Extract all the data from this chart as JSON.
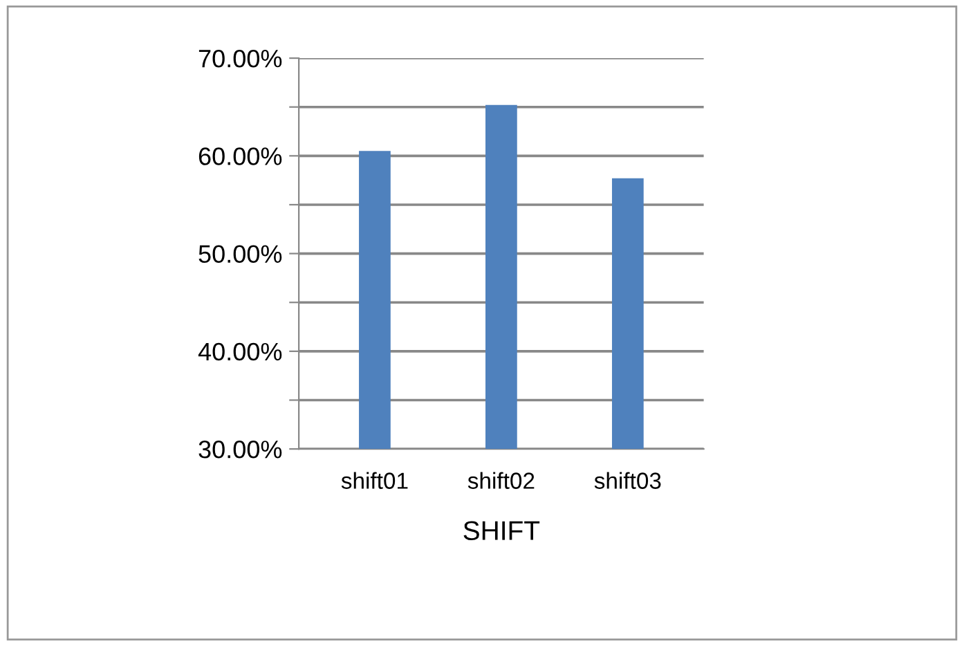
{
  "chart_data": {
    "type": "bar",
    "xlabel": "SHIFT",
    "categories": [
      "shift01",
      "shift02",
      "shift03"
    ],
    "values": [
      60.5,
      65.2,
      57.7
    ],
    "color": "#4f81bd",
    "ylim": [
      30,
      70
    ],
    "yticks": [
      {
        "value": 30,
        "label": "30.00%"
      },
      {
        "value": 35,
        "label": null
      },
      {
        "value": 40,
        "label": "40.00%"
      },
      {
        "value": 45,
        "label": null
      },
      {
        "value": 50,
        "label": "50.00%"
      },
      {
        "value": 55,
        "label": null
      },
      {
        "value": 60,
        "label": "60.00%"
      },
      {
        "value": 65,
        "label": null
      },
      {
        "value": 70,
        "label": "70.00%"
      }
    ],
    "grid": "y",
    "legend": false
  }
}
